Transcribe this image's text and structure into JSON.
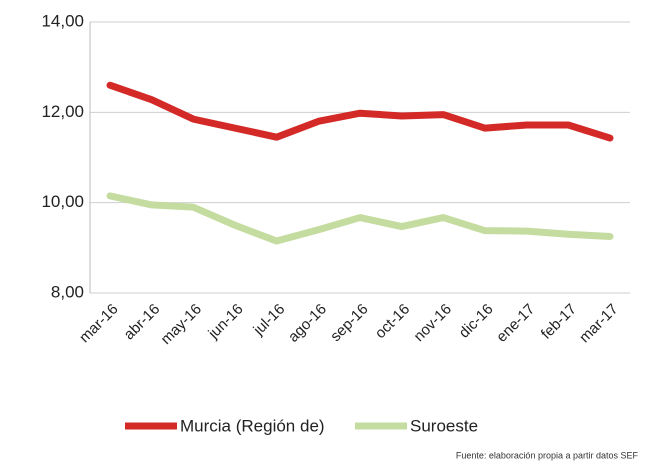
{
  "chart_data": {
    "type": "line",
    "categories": [
      "mar-16",
      "abr-16",
      "may-16",
      "jun-16",
      "jul-16",
      "ago-16",
      "sep-16",
      "oct-16",
      "nov-16",
      "dic-16",
      "ene-17",
      "feb-17",
      "mar-17"
    ],
    "series": [
      {
        "name": "Murcia (Región de)",
        "color": "#d42a27",
        "values": [
          12.6,
          12.28,
          11.85,
          11.65,
          11.45,
          11.8,
          11.98,
          11.92,
          11.95,
          11.65,
          11.72,
          11.72,
          11.43
        ]
      },
      {
        "name": "Suroeste",
        "color": "#c5dca0",
        "values": [
          10.15,
          9.95,
          9.9,
          9.5,
          9.15,
          9.4,
          9.67,
          9.47,
          9.67,
          9.38,
          9.37,
          9.3,
          9.25
        ]
      }
    ],
    "ylim": [
      8,
      14
    ],
    "yticks": [
      {
        "value": 8,
        "label": "8,00"
      },
      {
        "value": 10,
        "label": "10,00"
      },
      {
        "value": 12,
        "label": "12,00"
      },
      {
        "value": 14,
        "label": "14,00"
      }
    ],
    "grid": true,
    "legend": "bottom",
    "annotation": "Fuente: elaboración propia a partir datos SEF"
  }
}
